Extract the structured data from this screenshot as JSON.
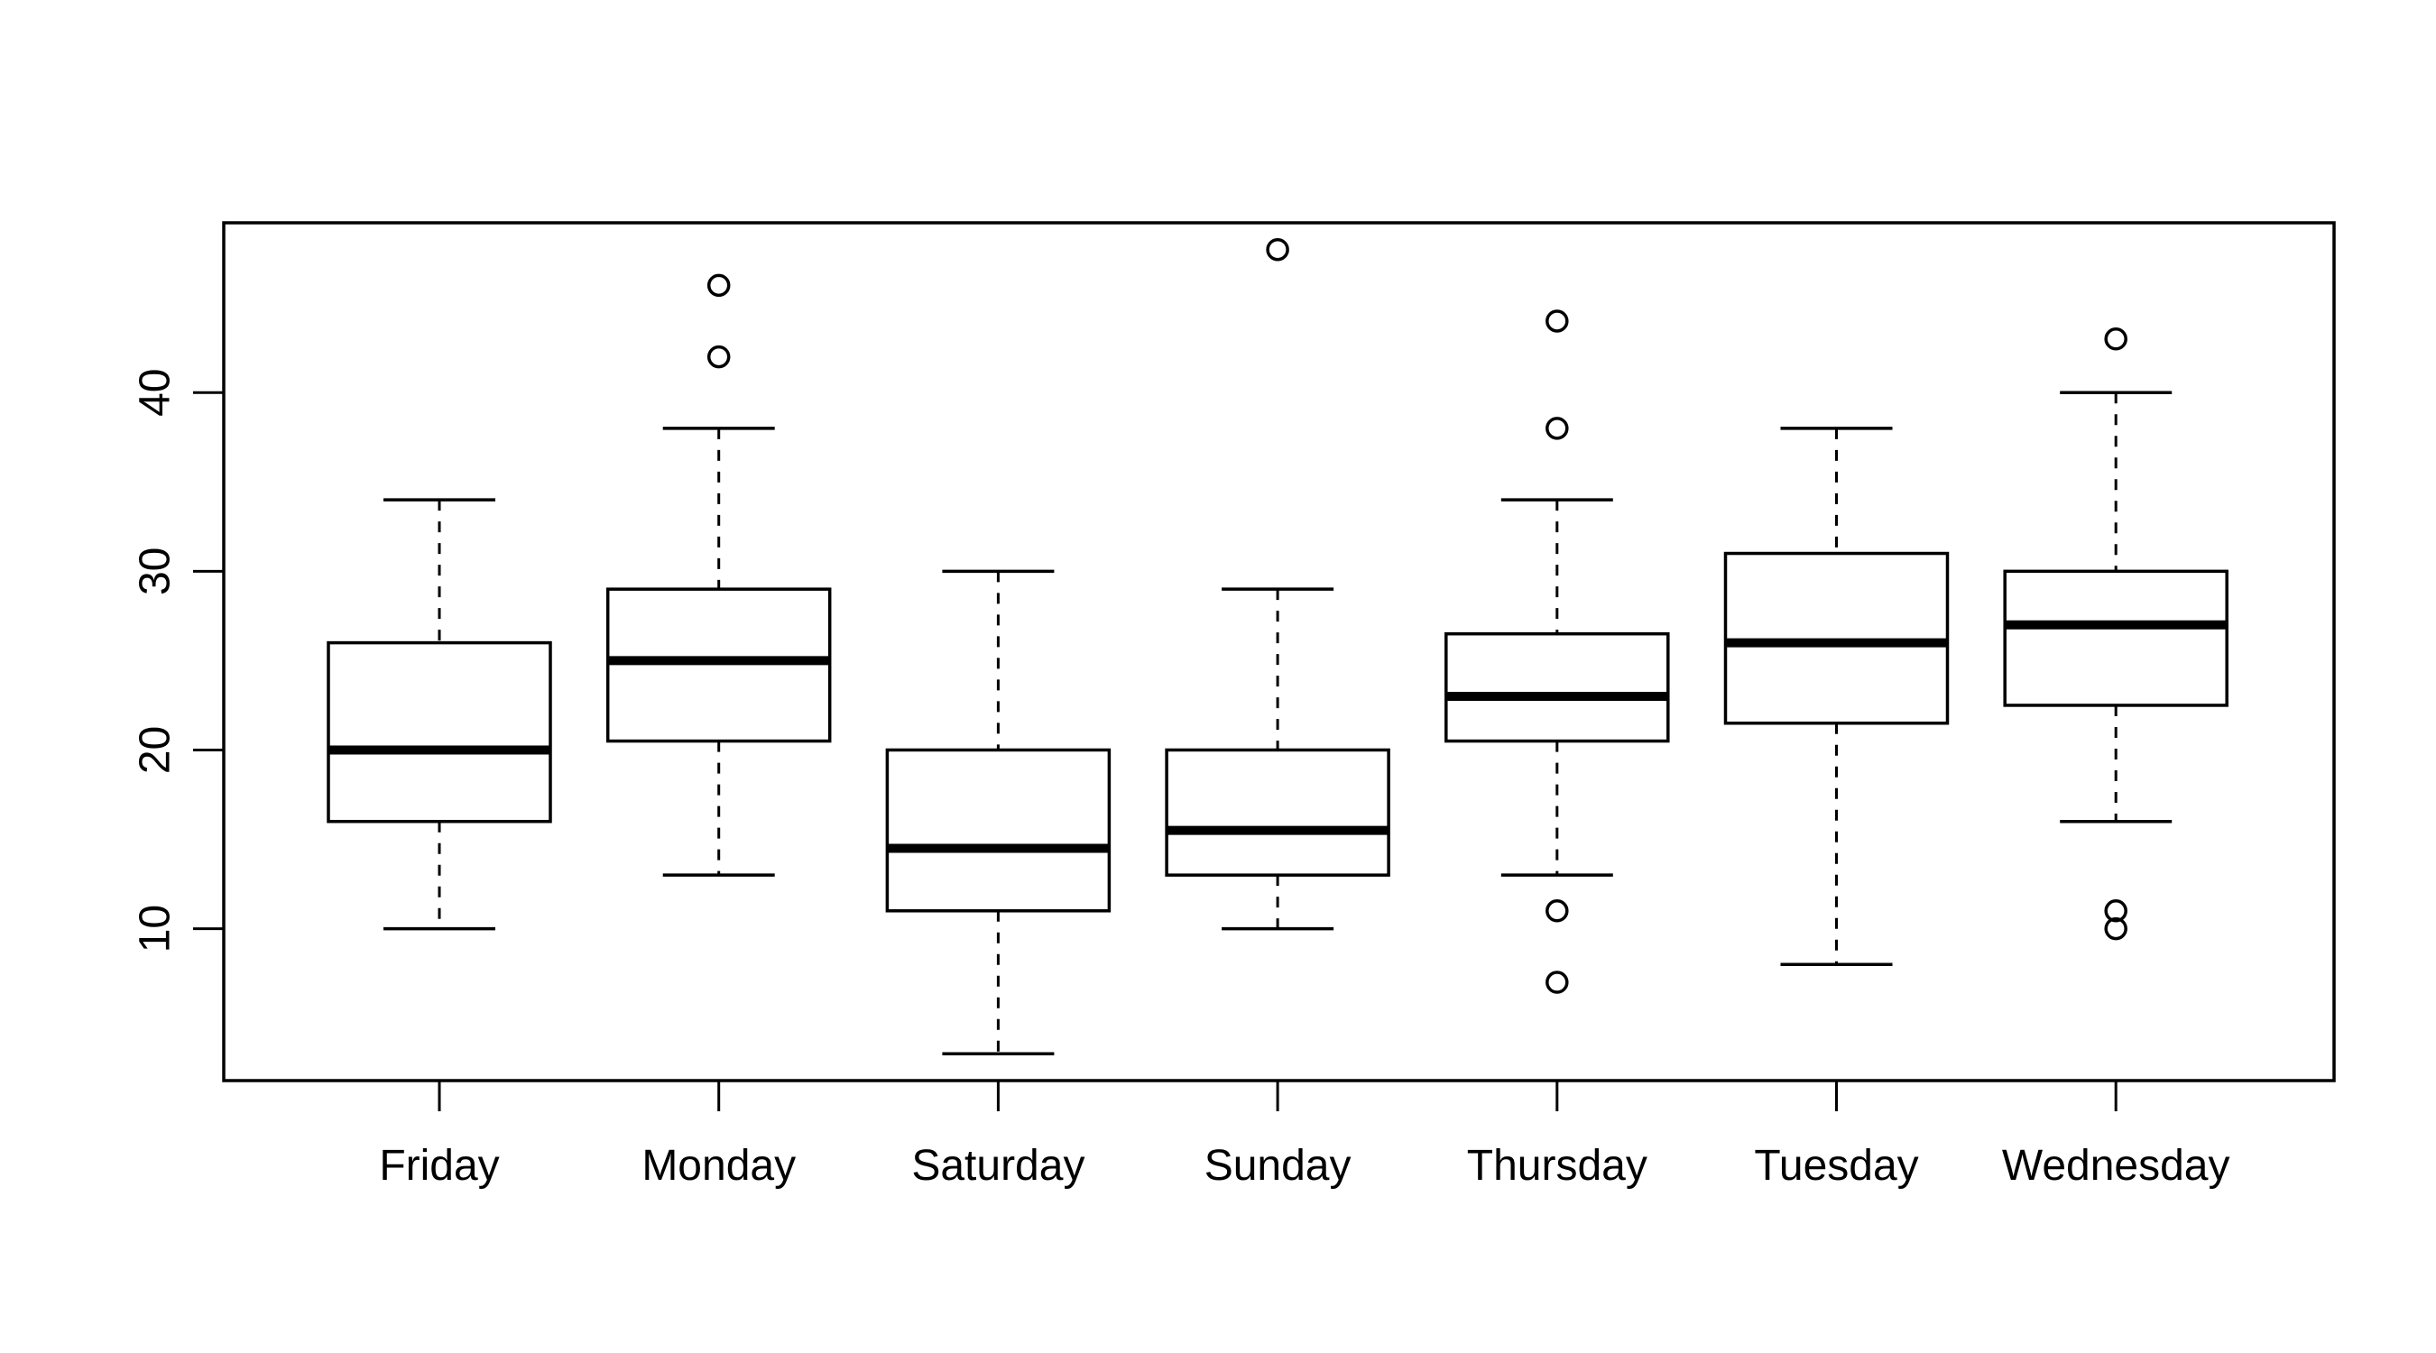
{
  "chart_data": {
    "type": "boxplot",
    "title": "",
    "xlabel": "",
    "ylabel": "",
    "ylim": [
      1.5,
      49.5
    ],
    "y_ticks": [
      10,
      20,
      30,
      40
    ],
    "grid": false,
    "categories": [
      "Friday",
      "Monday",
      "Saturday",
      "Sunday",
      "Thursday",
      "Tuesday",
      "Wednesday"
    ],
    "boxes": [
      {
        "category": "Friday",
        "whisker_low": 10,
        "q1": 16,
        "median": 20,
        "q3": 26,
        "whisker_high": 34,
        "outliers": []
      },
      {
        "category": "Monday",
        "whisker_low": 13,
        "q1": 20.5,
        "median": 25,
        "q3": 29,
        "whisker_high": 38,
        "outliers": [
          42,
          46
        ]
      },
      {
        "category": "Saturday",
        "whisker_low": 3,
        "q1": 11,
        "median": 14.5,
        "q3": 20,
        "whisker_high": 30,
        "outliers": []
      },
      {
        "category": "Sunday",
        "whisker_low": 10,
        "q1": 13,
        "median": 15.5,
        "q3": 20,
        "whisker_high": 29,
        "outliers": [
          48
        ]
      },
      {
        "category": "Thursday",
        "whisker_low": 13,
        "q1": 20.5,
        "median": 23,
        "q3": 26.5,
        "whisker_high": 34,
        "outliers": [
          7,
          11,
          38,
          44
        ]
      },
      {
        "category": "Tuesday",
        "whisker_low": 8,
        "q1": 21.5,
        "median": 26,
        "q3": 31,
        "whisker_high": 38,
        "outliers": []
      },
      {
        "category": "Wednesday",
        "whisker_low": 16,
        "q1": 22.5,
        "median": 27,
        "q3": 30,
        "whisker_high": 40,
        "outliers": [
          10,
          11,
          43
        ]
      }
    ],
    "colors": {
      "stroke": "#000000",
      "fill": "#ffffff"
    }
  }
}
